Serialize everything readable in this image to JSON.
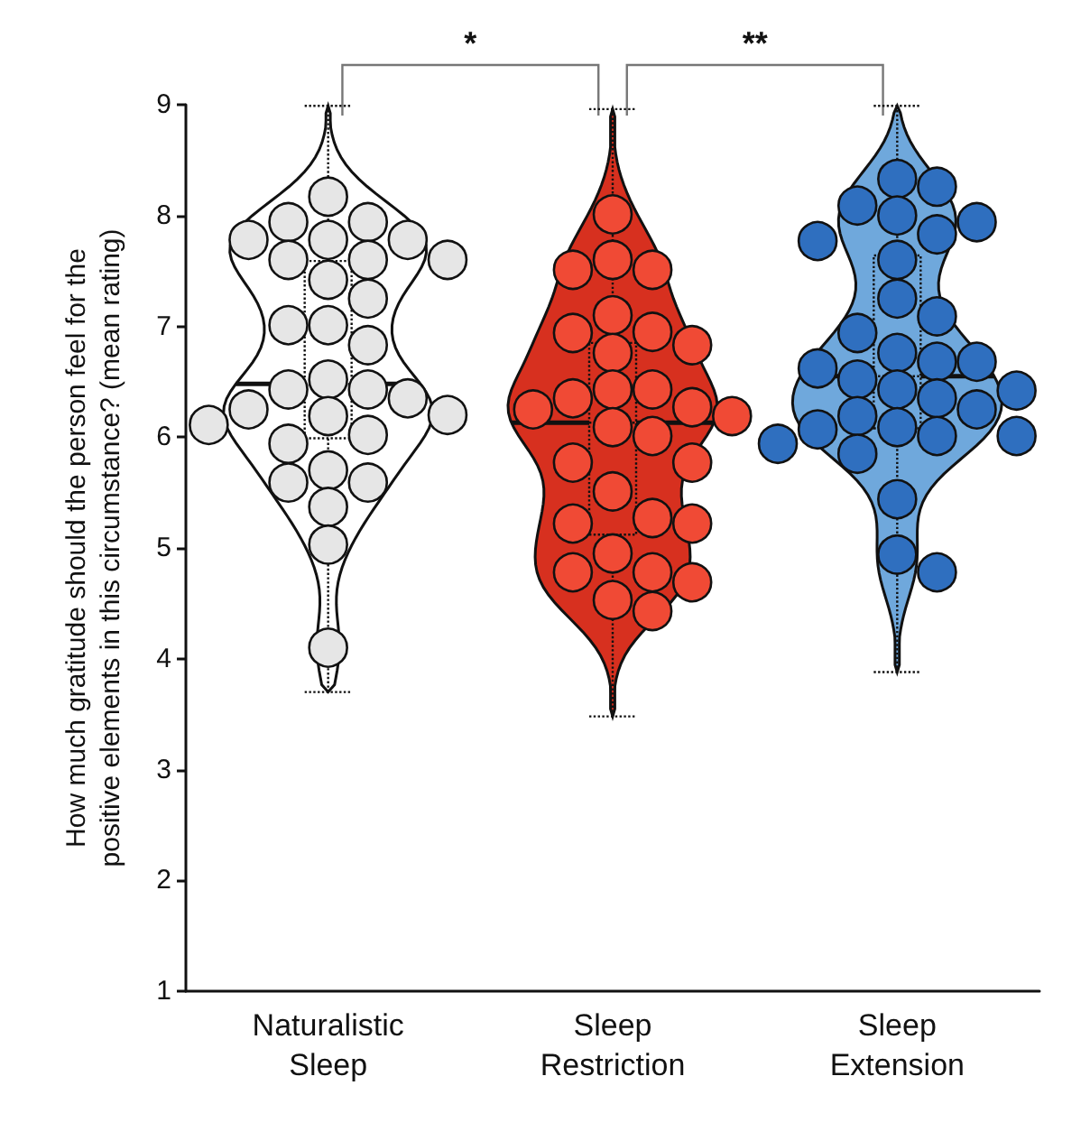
{
  "chart_data": {
    "type": "box",
    "ylabel": "How much gratitude should the person feel for the\npositive elements in this circumstance? (mean rating)",
    "categories": [
      "Naturalistic\nSleep",
      "Sleep\nRestriction",
      "Sleep\nExtension"
    ],
    "ylim": [
      1,
      9
    ],
    "yticks": [
      1,
      2,
      3,
      4,
      5,
      6,
      7,
      8,
      9
    ],
    "grid": false,
    "marker": "circle",
    "annotations": [
      "*",
      "**"
    ],
    "series": [
      {
        "colors": [
          "#ffffff",
          "#d7301f",
          "#6fa8dc"
        ],
        "boxes": [
          {
            "low": 3.7,
            "q1": 5.99,
            "median": 6.48,
            "q3": 7.59,
            "high": 8.99
          },
          {
            "low": 3.48,
            "q1": 5.12,
            "median": 6.13,
            "q3": 6.85,
            "high": 8.96
          },
          {
            "low": 3.88,
            "q1": 6.08,
            "median": 6.55,
            "q3": 7.64,
            "high": 8.99
          }
        ]
      },
      {
        "type": "scatter",
        "color": "#e6e6e6",
        "x": [
          "Naturalistic\nSleep",
          "Naturalistic\nSleep",
          "Naturalistic\nSleep",
          "Naturalistic\nSleep",
          "Naturalistic\nSleep",
          "Naturalistic\nSleep",
          "Naturalistic\nSleep",
          "Naturalistic\nSleep",
          "Naturalistic\nSleep",
          "Naturalistic\nSleep",
          "Naturalistic\nSleep",
          "Naturalistic\nSleep",
          "Naturalistic\nSleep",
          "Naturalistic\nSleep",
          "Naturalistic\nSleep",
          "Naturalistic\nSleep",
          "Naturalistic\nSleep",
          "Naturalistic\nSleep",
          "Naturalistic\nSleep",
          "Naturalistic\nSleep",
          "Naturalistic\nSleep",
          "Naturalistic\nSleep",
          "Naturalistic\nSleep",
          "Naturalistic\nSleep",
          "Naturalistic\nSleep",
          "Naturalistic\nSleep",
          "Naturalistic\nSleep",
          "Naturalistic\nSleep",
          "Naturalistic\nSleep",
          "Naturalistic\nSleep"
        ],
        "values": [
          8.17,
          7.94,
          7.94,
          7.78,
          7.78,
          7.78,
          7.6,
          7.6,
          7.6,
          7.42,
          7.25,
          7.01,
          7.01,
          6.83,
          6.43,
          6.43,
          6.52,
          6.25,
          6.35,
          6.19,
          6.2,
          6.11,
          6.02,
          5.94,
          5.7,
          5.59,
          5.59,
          5.37,
          5.03,
          4.1
        ]
      },
      {
        "type": "scatter",
        "color": "#f04a35",
        "x": [
          "Sleep\nRestriction",
          "Sleep\nRestriction",
          "Sleep\nRestriction",
          "Sleep\nRestriction",
          "Sleep\nRestriction",
          "Sleep\nRestriction",
          "Sleep\nRestriction",
          "Sleep\nRestriction",
          "Sleep\nRestriction",
          "Sleep\nRestriction",
          "Sleep\nRestriction",
          "Sleep\nRestriction",
          "Sleep\nRestriction",
          "Sleep\nRestriction",
          "Sleep\nRestriction",
          "Sleep\nRestriction",
          "Sleep\nRestriction",
          "Sleep\nRestriction",
          "Sleep\nRestriction",
          "Sleep\nRestriction",
          "Sleep\nRestriction",
          "Sleep\nRestriction",
          "Sleep\nRestriction",
          "Sleep\nRestriction",
          "Sleep\nRestriction",
          "Sleep\nRestriction",
          "Sleep\nRestriction",
          "Sleep\nRestriction",
          "Sleep\nRestriction"
        ],
        "values": [
          8.01,
          7.51,
          7.6,
          7.51,
          7.1,
          6.95,
          6.76,
          6.83,
          6.94,
          6.43,
          6.43,
          6.27,
          6.35,
          6.25,
          6.19,
          6.01,
          6.09,
          5.77,
          5.77,
          5.51,
          5.22,
          5.27,
          5.22,
          4.95,
          4.69,
          4.78,
          4.78,
          4.43,
          4.53
        ]
      },
      {
        "type": "scatter",
        "color": "#2f6fbf",
        "x": [
          "Sleep\nExtension",
          "Sleep\nExtension",
          "Sleep\nExtension",
          "Sleep\nExtension",
          "Sleep\nExtension",
          "Sleep\nExtension",
          "Sleep\nExtension",
          "Sleep\nExtension",
          "Sleep\nExtension",
          "Sleep\nExtension",
          "Sleep\nExtension",
          "Sleep\nExtension",
          "Sleep\nExtension",
          "Sleep\nExtension",
          "Sleep\nExtension",
          "Sleep\nExtension",
          "Sleep\nExtension",
          "Sleep\nExtension",
          "Sleep\nExtension",
          "Sleep\nExtension",
          "Sleep\nExtension",
          "Sleep\nExtension",
          "Sleep\nExtension",
          "Sleep\nExtension",
          "Sleep\nExtension",
          "Sleep\nExtension",
          "Sleep\nExtension",
          "Sleep\nExtension",
          "Sleep\nExtension",
          "Sleep\nExtension"
        ],
        "values": [
          8.33,
          8.26,
          8.0,
          8.09,
          7.94,
          7.77,
          7.83,
          7.6,
          7.25,
          7.09,
          6.94,
          6.76,
          6.62,
          6.68,
          6.68,
          6.52,
          6.35,
          6.43,
          6.42,
          6.25,
          6.19,
          6.01,
          6.01,
          6.07,
          6.09,
          5.94,
          5.85,
          5.44,
          4.94,
          4.78
        ]
      }
    ]
  }
}
